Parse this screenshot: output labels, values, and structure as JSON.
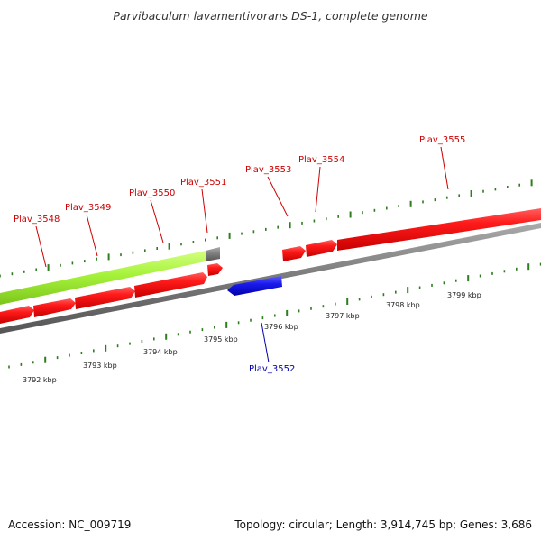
{
  "title": "Parvibaculum lavamentivorans DS-1, complete genome",
  "footer": {
    "accession": "Accession: NC_009719",
    "summary": "Topology: circular; Length: 3,914,745 bp; Genes: 3,686"
  },
  "colors": {
    "forward_gene": "#ee1111",
    "reverse_gene": "#1515dd",
    "rna_gene": "#99ee33",
    "unknown_feature": "#666666",
    "backbone": "#888888",
    "tick": "#2e7d1e",
    "forward_label": "#cc0000",
    "reverse_label": "#0000aa"
  },
  "tick_labels": [
    "3792 kbp",
    "3793 kbp",
    "3794 kbp",
    "3795 kbp",
    "3796 kbp",
    "3797 kbp",
    "3798 kbp",
    "3799 kbp"
  ],
  "genes_forward": [
    "Plav_3548",
    "Plav_3549",
    "Plav_3550",
    "Plav_3551",
    "Plav_3553",
    "Plav_3554",
    "Plav_3555"
  ],
  "genes_reverse": [
    "Plav_3552"
  ]
}
